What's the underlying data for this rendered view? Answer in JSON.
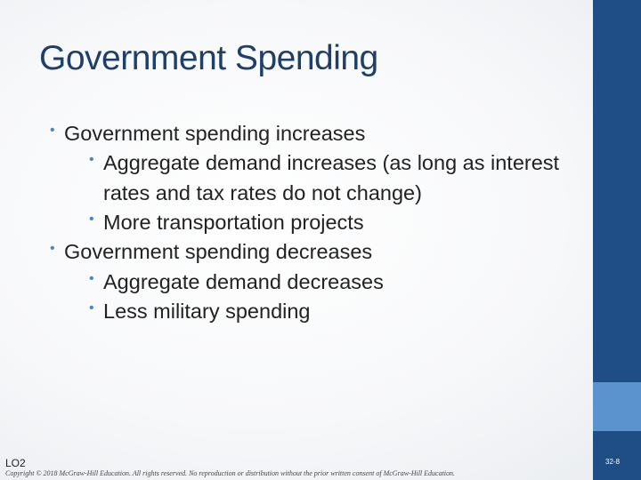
{
  "slide": {
    "title": "Government Spending",
    "bullets": [
      {
        "level": 1,
        "text": "Government spending increases"
      },
      {
        "level": 2,
        "text": "Aggregate demand increases (as long as interest rates and tax rates do not change)"
      },
      {
        "level": 2,
        "text": "More transportation projects"
      },
      {
        "level": 1,
        "text": "Government spending decreases"
      },
      {
        "level": 2,
        "text": "Aggregate demand decreases"
      },
      {
        "level": 2,
        "text": "Less military spending"
      }
    ]
  },
  "footer": {
    "lo": "LO2",
    "copyright": "Copyright © 2018 McGraw-Hill Education. All rights reserved. No reproduction or distribution without the prior written consent of McGraw-Hill Education.",
    "slide_number": "32-8"
  },
  "colors": {
    "accent_dark": "#1f4e86",
    "accent_light": "#5b93cf",
    "title": "#1f3f6a",
    "bullet": "#4a86c7"
  }
}
